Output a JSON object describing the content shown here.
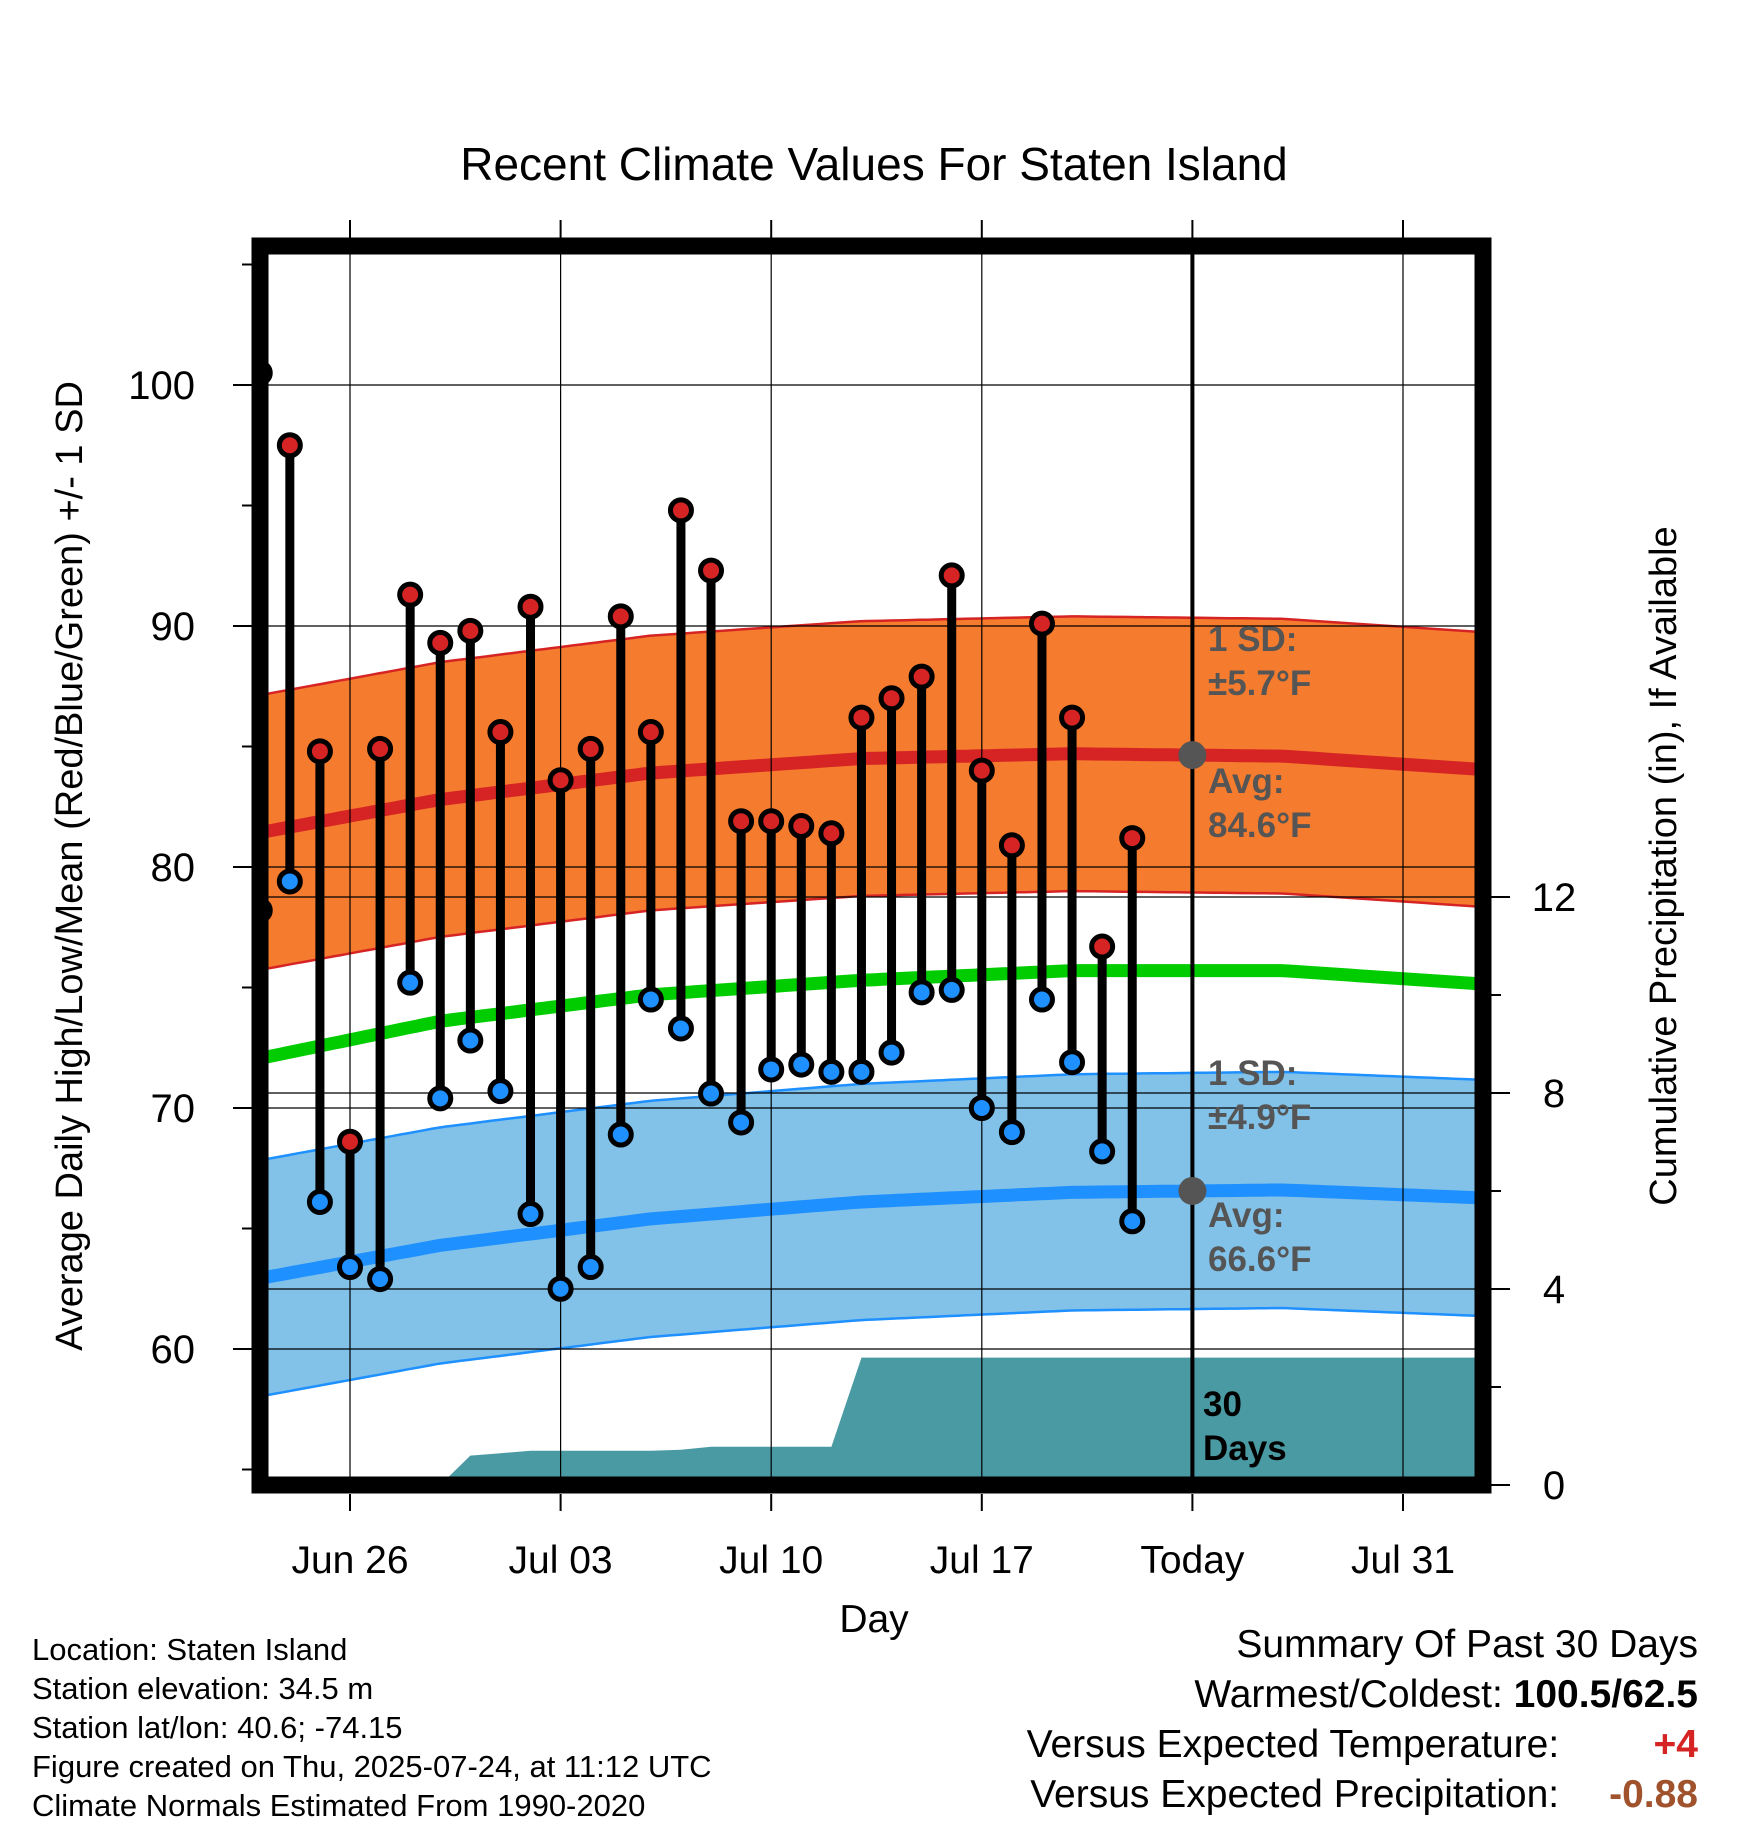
{
  "chart_data": {
    "type": "line",
    "title": "Recent Climate Values For Staten Island",
    "xlabel": "Day",
    "ylabel": "Average Daily High/Low/Mean (Red/Blue/Green) +/- 1 SD",
    "y2label": "Cumulative Precipitation (in), If Available",
    "ylim": [
      54.5,
      105.5
    ],
    "y2lim": [
      0,
      24.1
    ],
    "yticks": [
      "60",
      "70",
      "80",
      "90",
      "100"
    ],
    "y2ticks": [
      "0",
      "4",
      "8",
      "12"
    ],
    "xtick_labels": [
      "Jun 26",
      "Jul 03",
      "Jul 10",
      "Jul 17",
      "Today",
      "Jul 31"
    ],
    "x_dates": [
      "Jun 23",
      "Jun 24",
      "Jun 25",
      "Jun 26",
      "Jun 27",
      "Jun 28",
      "Jun 29",
      "Jun 30",
      "Jul 01",
      "Jul 02",
      "Jul 03",
      "Jul 04",
      "Jul 05",
      "Jul 06",
      "Jul 07",
      "Jul 08",
      "Jul 09",
      "Jul 10",
      "Jul 11",
      "Jul 12",
      "Jul 13",
      "Jul 14",
      "Jul 15",
      "Jul 16",
      "Jul 17",
      "Jul 18",
      "Jul 19",
      "Jul 20",
      "Jul 21",
      "Jul 22",
      "Jul 23"
    ],
    "daily_high": [
      100.5,
      97.5,
      84.8,
      68.6,
      84.9,
      91.3,
      89.3,
      89.8,
      85.6,
      90.8,
      83.6,
      84.9,
      90.4,
      85.6,
      94.8,
      92.3,
      81.9,
      81.9,
      81.7,
      81.4,
      86.2,
      87.0,
      87.9,
      92.1,
      84.0,
      80.9,
      90.1,
      86.2,
      76.7,
      81.2
    ],
    "daily_low": [
      78.2,
      79.4,
      66.1,
      63.4,
      62.9,
      75.2,
      70.4,
      72.8,
      70.7,
      65.6,
      62.5,
      63.4,
      68.9,
      74.5,
      73.3,
      70.6,
      69.4,
      71.6,
      71.8,
      71.5,
      71.5,
      72.3,
      74.8,
      74.9,
      70.0,
      69.0,
      74.5,
      71.9,
      68.2,
      65.3
    ],
    "normal_dates": [
      "Jun 22",
      "Jun 29",
      "Jul 06",
      "Jul 13",
      "Jul 20",
      "Jul 27",
      "Aug 02"
    ],
    "normal_high": [
      81.2,
      82.8,
      83.9,
      84.5,
      84.7,
      84.6,
      84.1
    ],
    "normal_low": [
      62.7,
      64.3,
      65.4,
      66.1,
      66.5,
      66.6,
      66.3
    ],
    "normal_mean": [
      71.8,
      73.6,
      74.7,
      75.3,
      75.7,
      75.7,
      75.2
    ],
    "high_sd": 5.7,
    "low_sd": 4.9,
    "cumulative_precip": [
      0,
      0,
      0,
      0,
      0,
      0,
      0,
      0.6,
      0.65,
      0.7,
      0.7,
      0.7,
      0.7,
      0.7,
      0.72,
      0.78,
      0.78,
      0.78,
      0.78,
      0.78,
      2.6,
      2.6,
      2.6,
      2.6,
      2.6,
      2.6,
      2.6,
      2.6,
      2.6,
      2.6,
      2.6
    ],
    "today_date": "Jul 24",
    "annotations": {
      "high_sd_label": "1 SD:",
      "high_sd_value": "±5.7°F",
      "high_avg_label": "Avg:",
      "high_avg_value": "84.6°F",
      "low_sd_label": "1 SD:",
      "low_sd_value": "±4.9°F",
      "low_avg_label": "Avg:",
      "low_avg_value": "66.6°F",
      "days_line1": "30",
      "days_line2": "Days"
    },
    "colors": {
      "high": "#d62424",
      "high_band": "#f57c2e",
      "low": "#1e90ff",
      "low_band": "#82c1e8",
      "mean": "#00cc00",
      "precip": "#4a9aa3",
      "annotation": "#555555"
    },
    "grid": true
  },
  "footer": {
    "location": "Location: Staten Island",
    "elevation": "Station elevation: 34.5 m",
    "latlon": "Station lat/lon: 40.6; -74.15",
    "created": "Figure created on Thu, 2025-07-24, at 11:12 UTC",
    "normals": "Climate Normals Estimated From 1990-2020"
  },
  "summary": {
    "title": "Summary Of Past 30 Days",
    "warm_cold_label": "Warmest/Coldest:",
    "warm_cold_value": "100.5/62.5",
    "temp_label": "Versus Expected Temperature:",
    "temp_value": "+4",
    "temp_color": "#d62424",
    "precip_label": "Versus Expected Precipitation:",
    "precip_value": "-0.88",
    "precip_color": "#a0522d"
  }
}
